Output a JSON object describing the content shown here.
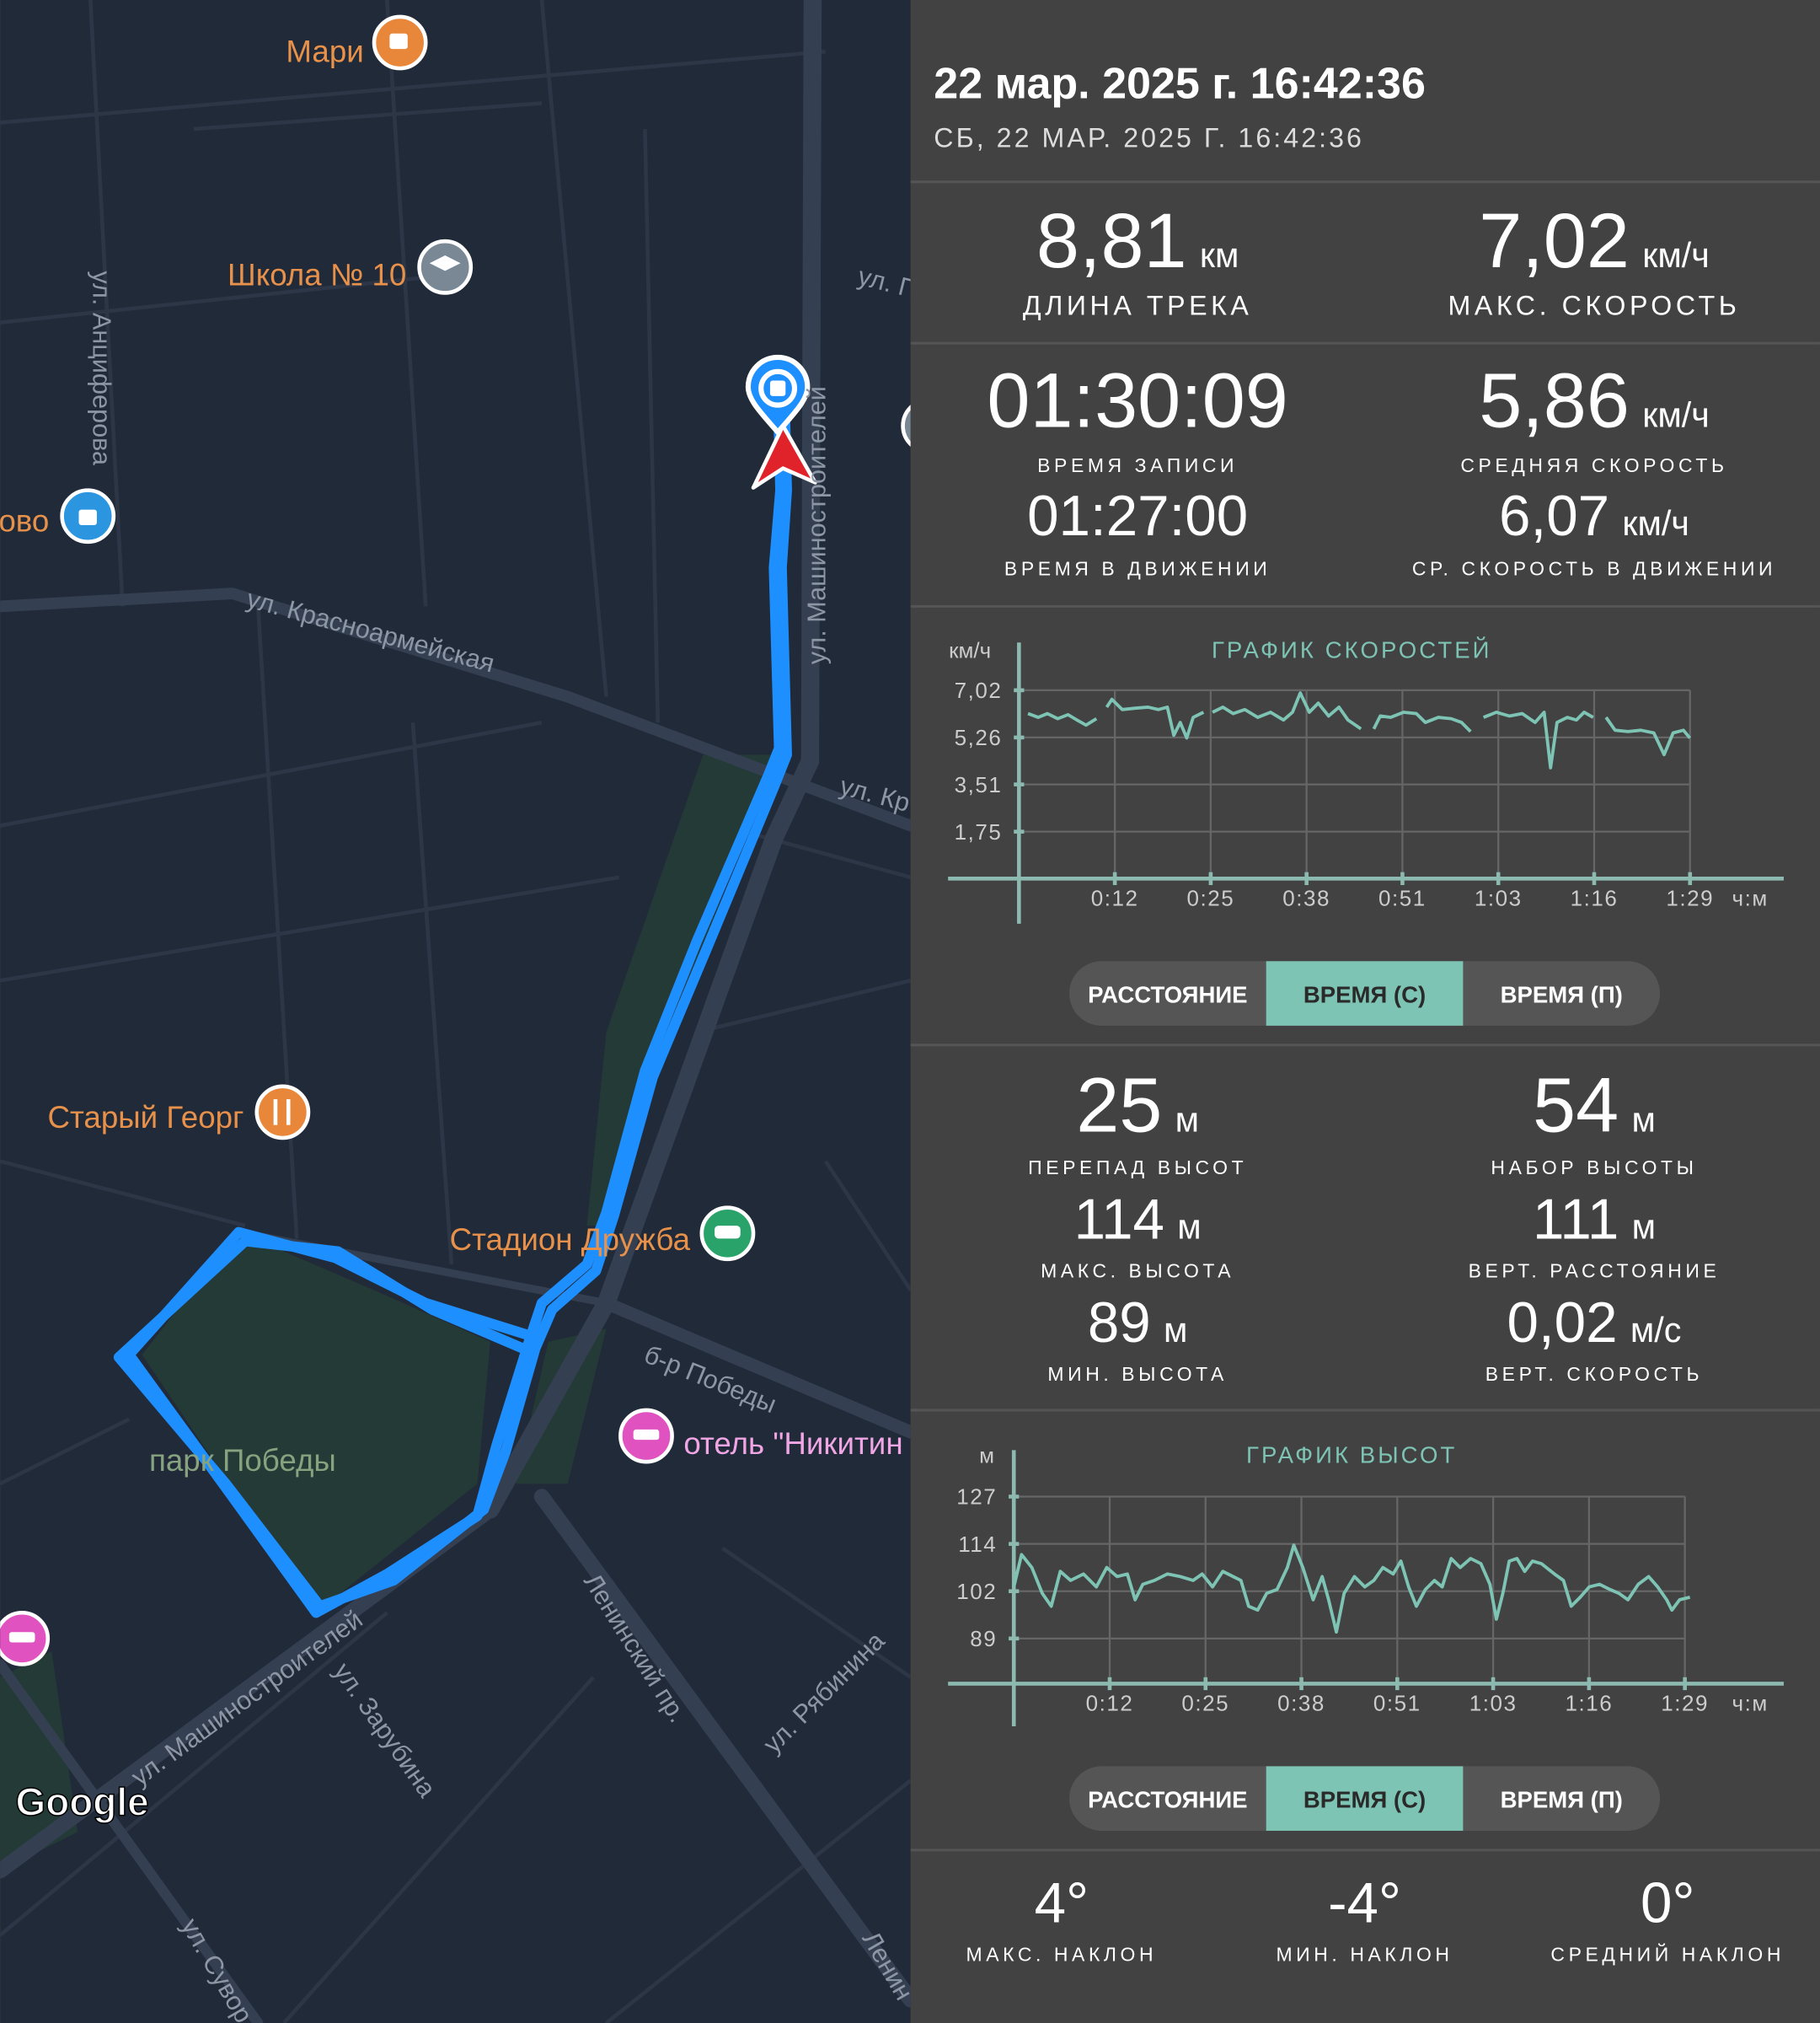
{
  "header": {
    "title": "22 мар. 2025 г. 16:42:36",
    "subtitle": "СБ, 22 МАР. 2025 Г. 16:42:36"
  },
  "map": {
    "places": [
      "Мари",
      "Школа № 10",
      "ово",
      "Старый Георг",
      "Стадион Дружба",
      "отель \"Никитин",
      "парк Победы"
    ],
    "streets": [
      "ул. Красноармейская",
      "ул. Машиностроителей",
      "ул. Анциферова",
      "ул. П",
      "ул. Кр",
      "б-р Победы",
      "Ленинский пр.",
      "ул. Рябинина",
      "ул. Зарубина",
      "ул. Машиностроителей",
      "ул. Сувор",
      "Ленин"
    ],
    "attribution": "Google"
  },
  "track_stats": [
    {
      "value": "8,81",
      "unit": "км",
      "label": "ДЛИНА ТРЕКА"
    },
    {
      "value": "7,02",
      "unit": "км/ч",
      "label": "МАКС. СКОРОСТЬ"
    },
    {
      "value": "01:30:09",
      "label": "ВРЕМЯ ЗАПИСИ"
    },
    {
      "value": "5,86",
      "unit": "км/ч",
      "label": "СРЕДНЯЯ СКОРОСТЬ"
    },
    {
      "value": "01:27:00",
      "label": "ВРЕМЯ В ДВИЖЕНИИ"
    },
    {
      "value": "6,07",
      "unit": "км/ч",
      "label": "СР. СКОРОСТЬ В ДВИЖЕНИИ"
    }
  ],
  "elevation_stats": [
    {
      "value": "25",
      "unit": "м",
      "label": "ПЕРЕПАД ВЫСОТ"
    },
    {
      "value": "54",
      "unit": "м",
      "label": "НАБОР ВЫСОТЫ"
    },
    {
      "value": "114",
      "unit": "м",
      "label": "МАКС. ВЫСОТА"
    },
    {
      "value": "111",
      "unit": "м",
      "label": "ВЕРТ. РАССТОЯНИЕ"
    },
    {
      "value": "89",
      "unit": "м",
      "label": "МИН. ВЫСОТА"
    },
    {
      "value": "0,02",
      "unit": "м/с",
      "label": "ВЕРТ. СКОРОСТЬ"
    }
  ],
  "slope_stats": [
    {
      "value": "4°",
      "label": "МАКС. НАКЛОН"
    },
    {
      "value": "-4°",
      "label": "МИН. НАКЛОН"
    },
    {
      "value": "0°",
      "label": "СРЕДНИЙ НАКЛОН"
    }
  ],
  "speed_toggle": {
    "options": [
      "РАССТОЯНИЕ",
      "ВРЕМЯ (С)",
      "ВРЕМЯ (П)"
    ],
    "active": 1
  },
  "altitude_toggle": {
    "options": [
      "РАССТОЯНИЕ",
      "ВРЕМЯ (С)",
      "ВРЕМЯ (П)"
    ],
    "active": 1
  },
  "chart_data": [
    {
      "type": "line",
      "title": "ГРАФИК СКОРОСТЕЙ",
      "ylabel": "км/ч",
      "xlabel": "ч:м",
      "color": "#7ec4b4",
      "grid": true,
      "xlim": [
        0,
        101.2
      ],
      "ylim": [
        0,
        7.02
      ],
      "xticks": [
        {
          "value": 12.75,
          "label": "0:12"
        },
        {
          "value": 25.5,
          "label": "0:25"
        },
        {
          "value": 38.25,
          "label": "0:38"
        },
        {
          "value": 51,
          "label": "0:51"
        },
        {
          "value": 63.75,
          "label": "1:03"
        },
        {
          "value": 76.5,
          "label": "1:16"
        },
        {
          "value": 89.25,
          "label": "1:29"
        }
      ],
      "yticks": [
        {
          "value": 1.75,
          "label": "1,75"
        },
        {
          "value": 3.51,
          "label": "3,51"
        },
        {
          "value": 5.26,
          "label": "5,26"
        },
        {
          "value": 7.02,
          "label": "7,02"
        }
      ],
      "x": [
        1.2,
        2.57,
        3.78,
        5.15,
        6.52,
        7.72,
        8.92,
        10.3,
        11.0,
        11.67,
        12.36,
        13.73,
        15.44,
        17.16,
        18.53,
        19.73,
        20.59,
        21.45,
        22.31,
        23.17,
        24.54,
        25.05,
        25.74,
        27.11,
        28.49,
        30.03,
        31.75,
        33.46,
        35.18,
        36.38,
        37.41,
        38.61,
        39.81,
        41.18,
        42.56,
        43.76,
        45.48,
        46.33,
        47.19,
        48.05,
        49.42,
        51.14,
        52.85,
        54.05,
        55.77,
        57.49,
        58.86,
        60.06,
        60.92,
        61.78,
        63.49,
        65.21,
        66.93,
        68.64,
        69.84,
        70.7,
        71.56,
        72.93,
        74.13,
        75.16,
        76.36,
        77.22,
        78.08,
        79.28,
        81.0,
        82.71,
        84.43,
        85.8,
        87.0,
        88.37,
        89.23
      ],
      "values": [
        6.15,
        6.01,
        6.15,
        5.96,
        6.11,
        5.91,
        5.72,
        5.96,
        null,
        6.39,
        6.68,
        6.3,
        6.35,
        6.39,
        6.3,
        6.39,
        5.34,
        5.82,
        5.24,
        6.01,
        6.2,
        null,
        6.2,
        6.39,
        6.15,
        6.3,
        6.01,
        6.2,
        5.91,
        6.2,
        6.92,
        6.2,
        6.54,
        6.06,
        6.39,
        5.91,
        5.58,
        null,
        5.58,
        6.06,
        6.01,
        6.2,
        6.15,
        5.82,
        6.01,
        5.96,
        5.82,
        5.48,
        null,
        6.01,
        6.2,
        6.06,
        6.15,
        5.82,
        6.2,
        4.13,
        5.82,
        6.01,
        5.91,
        6.2,
        6.01,
        null,
        6.01,
        5.53,
        5.48,
        5.53,
        5.43,
        4.62,
        5.43,
        5.53,
        5.24
      ]
    },
    {
      "type": "line",
      "title": "ГРАФИК ВЫСОТ",
      "ylabel": "м",
      "xlabel": "ч:м",
      "color": "#7ec4b4",
      "grid": true,
      "xlim": [
        0,
        101.2
      ],
      "ylim": [
        76.9,
        127
      ],
      "xticks": [
        {
          "value": 12.75,
          "label": "0:12"
        },
        {
          "value": 25.5,
          "label": "0:25"
        },
        {
          "value": 38.25,
          "label": "0:38"
        },
        {
          "value": 51,
          "label": "0:51"
        },
        {
          "value": 63.75,
          "label": "1:03"
        },
        {
          "value": 76.5,
          "label": "1:16"
        },
        {
          "value": 89.25,
          "label": "1:29"
        }
      ],
      "yticks": [
        89,
        {
          "value": 101.67,
          "label": "102"
        },
        {
          "value": 114.33,
          "label": "114"
        },
        127
      ],
      "x": [
        0,
        1.03,
        2.4,
        3.78,
        4.98,
        6.18,
        7.55,
        9.27,
        10.98,
        12.36,
        13.73,
        15.1,
        16.13,
        17.16,
        18.7,
        20.42,
        22.14,
        23.85,
        25.05,
        26.43,
        27.8,
        29.17,
        30.2,
        31.23,
        32.43,
        33.63,
        35.01,
        36.38,
        37.24,
        38.44,
        39.81,
        41.01,
        41.87,
        42.9,
        43.93,
        45.3,
        46.68,
        47.88,
        49.08,
        50.45,
        51.48,
        52.51,
        53.54,
        54.74,
        55.94,
        56.97,
        58.17,
        59.37,
        60.75,
        62.12,
        63.32,
        64.18,
        65.04,
        65.89,
        66.92,
        67.95,
        68.98,
        70.18,
        71.9,
        73.1,
        74.13,
        75.33,
        76.53,
        77.91,
        79.28,
        80.48,
        81.68,
        83.05,
        84.43,
        85.63,
        86.83,
        87.52,
        88.55,
        89.92
      ],
      "values": [
        102.82,
        111.46,
        108,
        101.1,
        97.64,
        106.97,
        104.55,
        106.28,
        102.82,
        108,
        105.59,
        106.28,
        99.37,
        103.51,
        104.55,
        106.28,
        105.59,
        104.55,
        106.28,
        102.82,
        106.97,
        105.59,
        104.55,
        97.64,
        96.6,
        101.1,
        102.13,
        108,
        114,
        108,
        99.37,
        105.59,
        99.37,
        90.73,
        101.1,
        105.59,
        102.82,
        104.55,
        108,
        106.28,
        109.73,
        102.82,
        97.64,
        102.13,
        104.55,
        102.82,
        110.42,
        108,
        110.42,
        109.04,
        103.51,
        94.19,
        101.1,
        109.73,
        110.42,
        106.97,
        109.73,
        109.04,
        106.28,
        104.55,
        97.64,
        100.06,
        102.82,
        103.51,
        102.13,
        101.1,
        99.37,
        103.51,
        105.59,
        102.82,
        99.37,
        96.6,
        99.37,
        100.06
      ]
    }
  ]
}
